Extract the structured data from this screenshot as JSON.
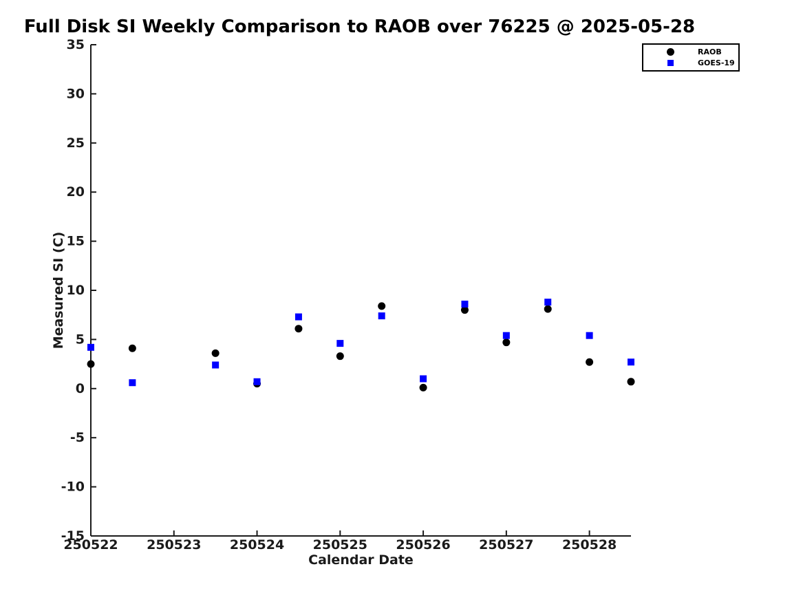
{
  "page": {
    "background": "#ffffff"
  },
  "chart_data": {
    "type": "scatter",
    "title": "Full Disk SI Weekly Comparison to RAOB over 76225 @ 2025-05-28",
    "xlabel": "Calendar Date",
    "ylabel": "Measured SI (C)",
    "xlim": [
      250522,
      250528.5
    ],
    "ylim": [
      -15,
      35
    ],
    "x_ticks": [
      250522,
      250523,
      250524,
      250525,
      250526,
      250527,
      250528
    ],
    "y_ticks": [
      35,
      30,
      25,
      20,
      15,
      10,
      5,
      0,
      -5,
      -10,
      -15
    ],
    "grid": false,
    "legend_position": "top-right",
    "axis_color": "#1a1a1a",
    "series": [
      {
        "name": "RAOB",
        "marker": "circle",
        "color": "#000000",
        "x": [
          250522,
          250522.5,
          250523.5,
          250524,
          250524.5,
          250525,
          250525.5,
          250526,
          250526.5,
          250527,
          250527.5,
          250528,
          250528.5
        ],
        "y": [
          2.5,
          4.1,
          3.6,
          0.5,
          6.1,
          3.3,
          8.4,
          0.1,
          8.0,
          4.7,
          8.1,
          2.7,
          0.7
        ]
      },
      {
        "name": "GOES-19",
        "marker": "square",
        "color": "#0000ff",
        "x": [
          250522,
          250522.5,
          250523.5,
          250524,
          250524.5,
          250525,
          250525.5,
          250526,
          250526.5,
          250527,
          250527.5,
          250528,
          250528.5
        ],
        "y": [
          4.2,
          0.6,
          2.4,
          0.7,
          7.3,
          4.6,
          7.4,
          1.0,
          8.6,
          5.4,
          8.8,
          5.4,
          2.7
        ]
      }
    ]
  }
}
